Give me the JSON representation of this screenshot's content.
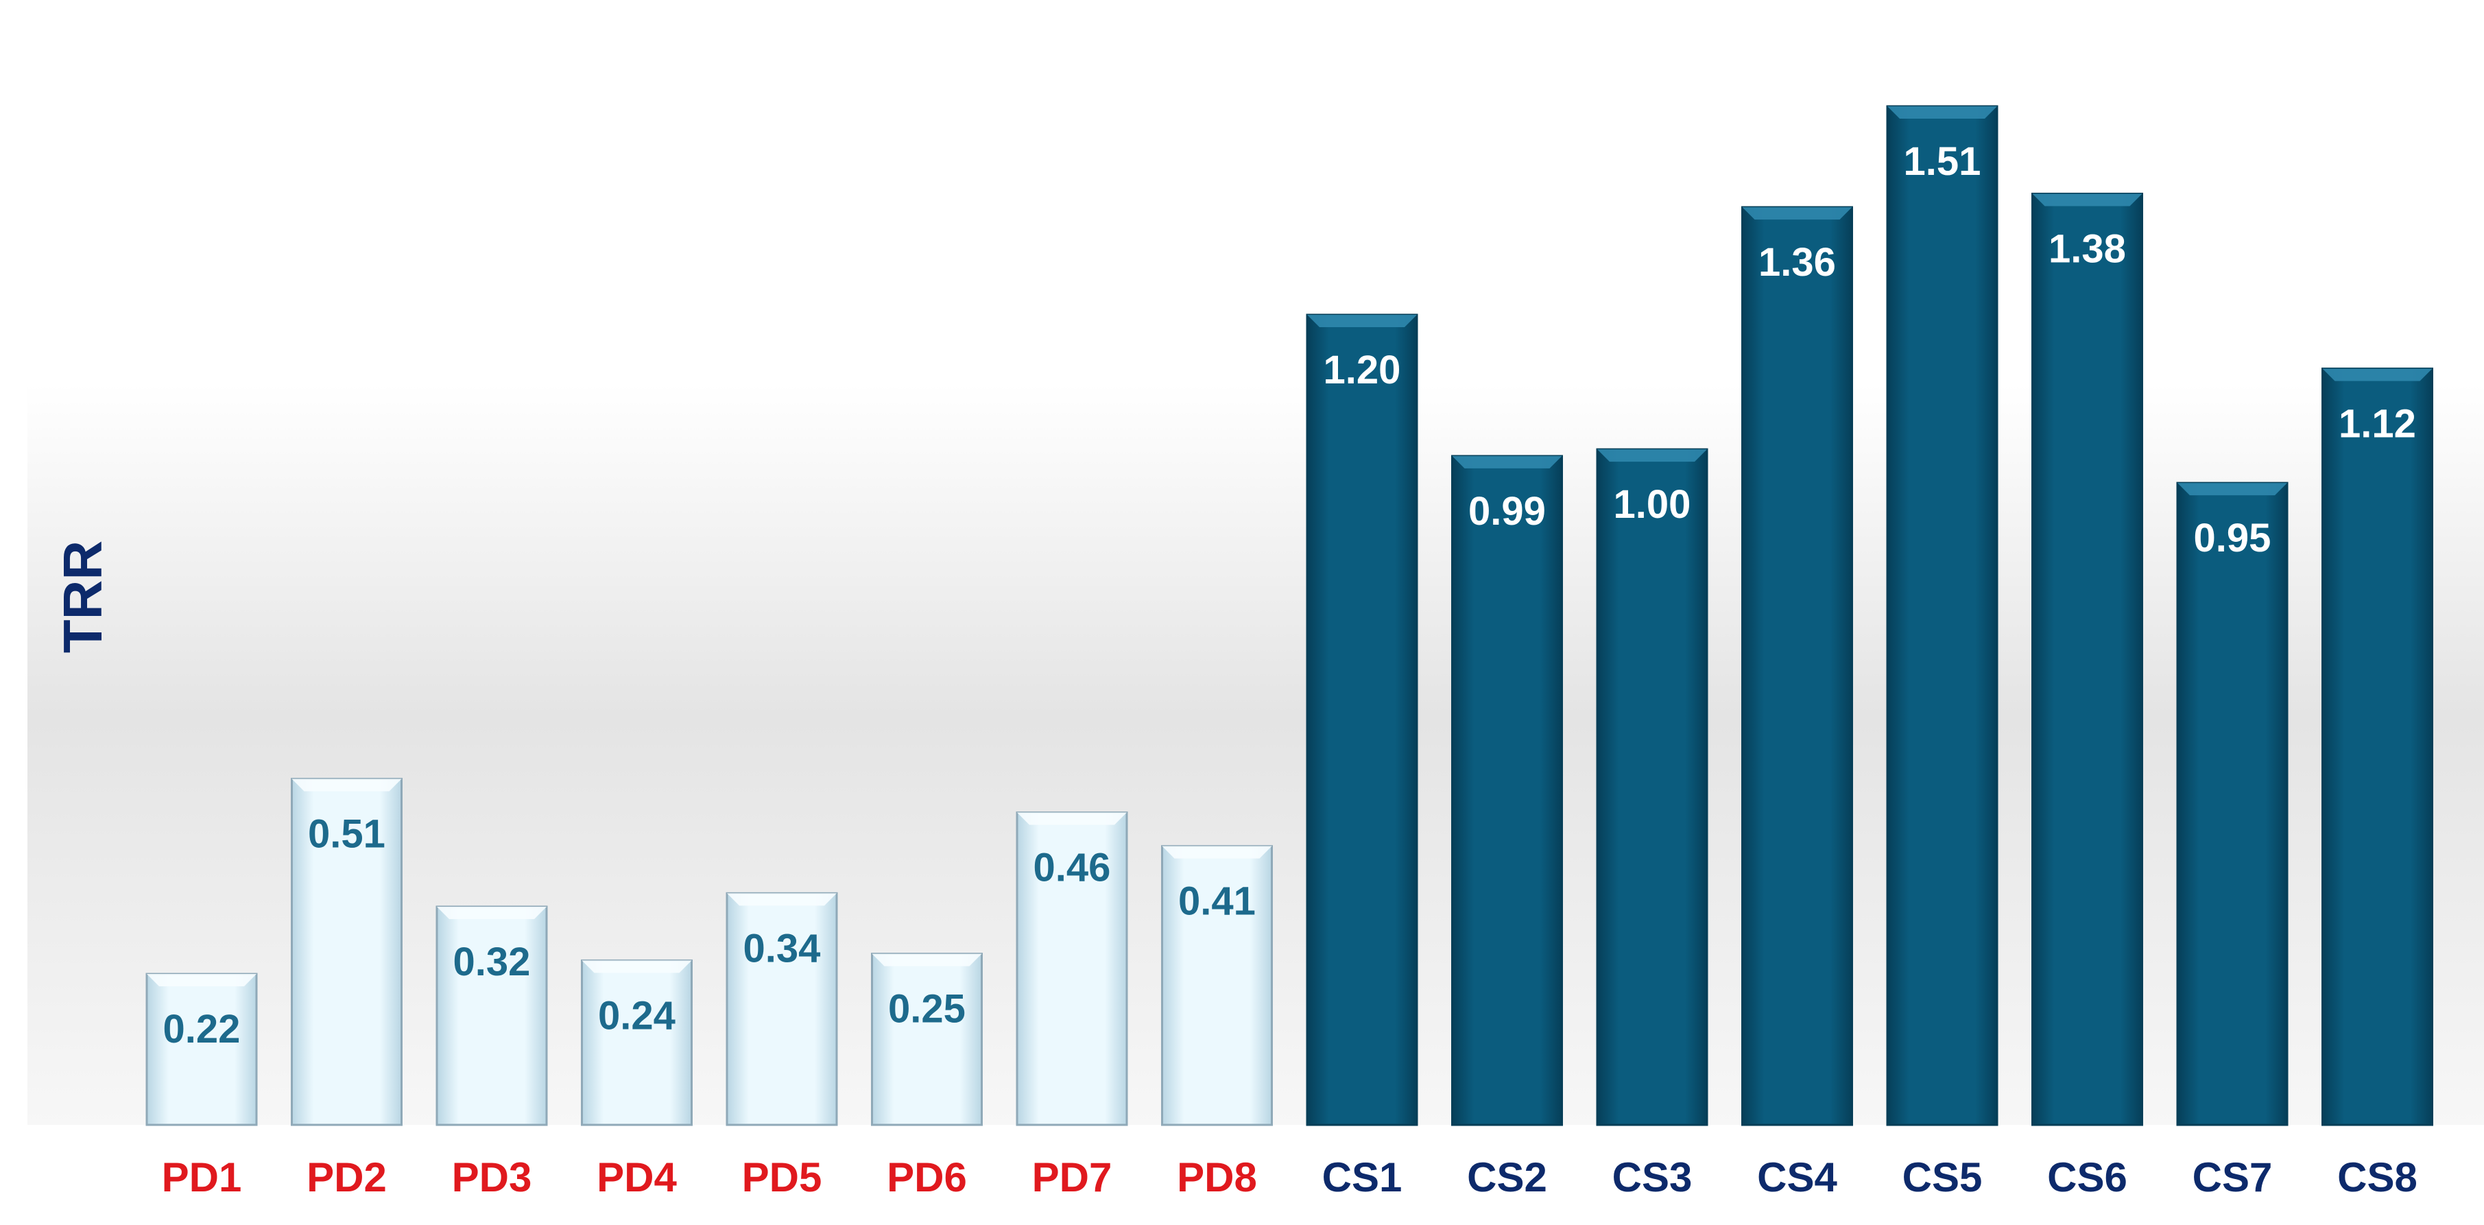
{
  "chart_data": {
    "type": "bar",
    "title": "",
    "xlabel": "",
    "ylabel": "TRR",
    "ylim": [
      0,
      1.65
    ],
    "grid": false,
    "legend": "none",
    "categories": [
      "PD1",
      "PD2",
      "PD3",
      "PD4",
      "PD5",
      "PD6",
      "PD7",
      "PD8",
      "CS1",
      "CS2",
      "CS3",
      "CS4",
      "CS5",
      "CS6",
      "CS7",
      "CS8"
    ],
    "values": [
      0.22,
      0.51,
      0.32,
      0.24,
      0.34,
      0.25,
      0.46,
      0.41,
      1.2,
      0.99,
      1.0,
      1.36,
      1.51,
      1.38,
      0.95,
      1.12
    ],
    "value_labels": [
      "0.22",
      "0.51",
      "0.32",
      "0.24",
      "0.34",
      "0.25",
      "0.46",
      "0.41",
      "1.20",
      "0.99",
      "1.00",
      "1.36",
      "1.51",
      "1.38",
      "0.95",
      "1.12"
    ],
    "groups": [
      "PD",
      "PD",
      "PD",
      "PD",
      "PD",
      "PD",
      "PD",
      "PD",
      "CS",
      "CS",
      "CS",
      "CS",
      "CS",
      "CS",
      "CS",
      "CS"
    ]
  },
  "colors": {
    "ylabel": "#0d2a6b",
    "pd_tick": "#e0191e",
    "cs_tick": "#0d2a6b",
    "pd_bar": "#e3f5fd",
    "pd_bar_edge": "#8fa9b8",
    "pd_value": "#1d6a8c",
    "cs_bar": "#0b5c7e",
    "cs_bar_edge": "#063e57",
    "cs_value": "#ffffff"
  }
}
